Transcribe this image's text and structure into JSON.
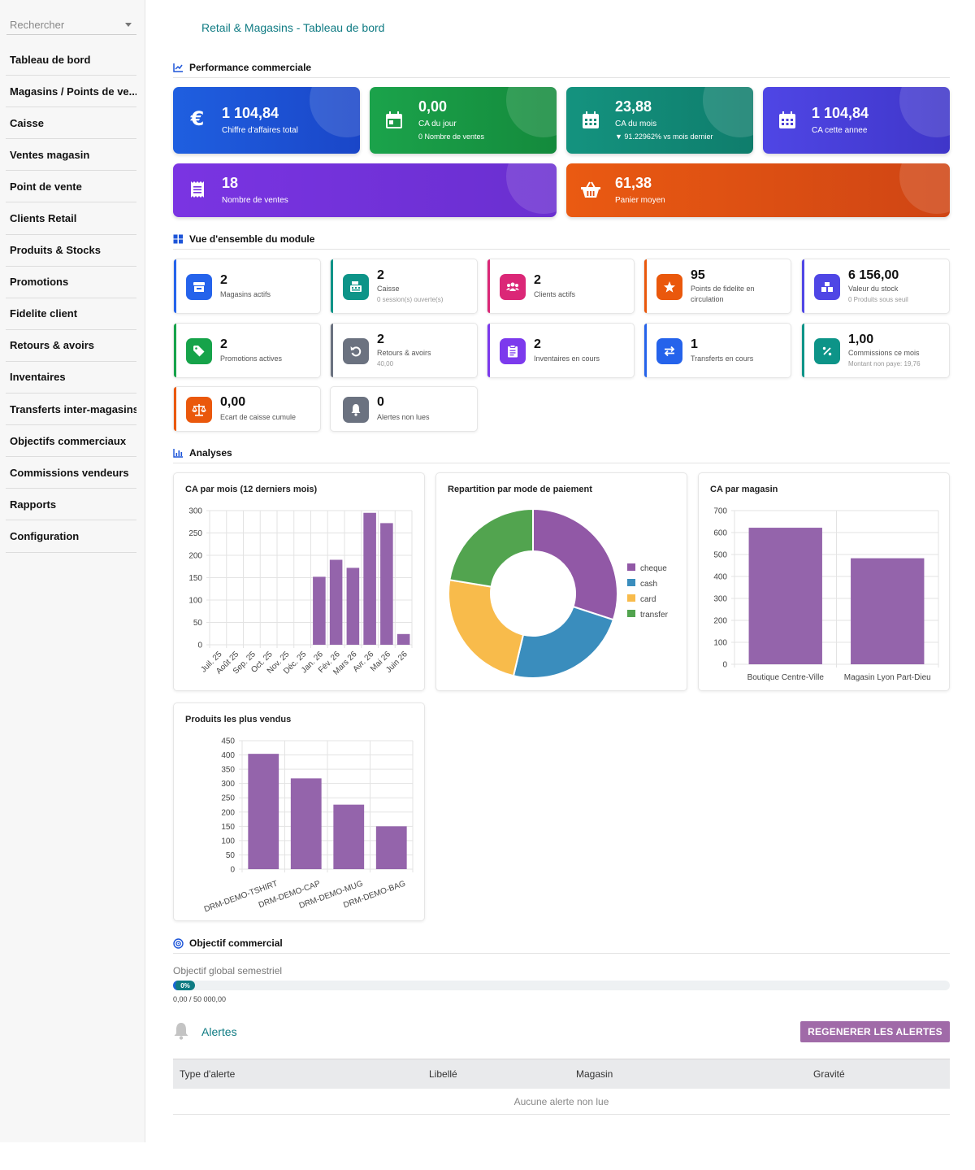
{
  "sidebar": {
    "search_placeholder": "Rechercher",
    "items": [
      {
        "label": "Tableau de bord"
      },
      {
        "label": "Magasins / Points de ve..."
      },
      {
        "label": "Caisse"
      },
      {
        "label": "Ventes magasin"
      },
      {
        "label": "Point de vente"
      },
      {
        "label": "Clients Retail"
      },
      {
        "label": "Produits & Stocks"
      },
      {
        "label": "Promotions"
      },
      {
        "label": "Fidelite client"
      },
      {
        "label": "Retours & avoirs"
      },
      {
        "label": "Inventaires"
      },
      {
        "label": "Transferts inter-magasins"
      },
      {
        "label": "Objectifs commerciaux"
      },
      {
        "label": "Commissions vendeurs"
      },
      {
        "label": "Rapports"
      },
      {
        "label": "Configuration"
      }
    ]
  },
  "header": {
    "title": "Retail & Magasins - Tableau de bord"
  },
  "sections": {
    "performance": "Performance commerciale",
    "overview": "Vue d'ensemble du module",
    "analyses": "Analyses",
    "objective": "Objectif commercial"
  },
  "kpis": [
    {
      "value": "1 104,84",
      "label": "Chiffre d'affaires total",
      "icon": "euro-icon",
      "color": "#1d55d8"
    },
    {
      "value": "0,00",
      "label": "CA du jour",
      "sub": "0 Nombre de ventes",
      "icon": "calendar-day-icon",
      "color": "#1a9a46"
    },
    {
      "value": "23,88",
      "label": "CA du mois",
      "sub": "▼ 91.22962% vs mois dernier",
      "icon": "calendar-month-icon",
      "color": "#138b78"
    },
    {
      "value": "1 104,84",
      "label": "CA cette annee",
      "icon": "calendar-year-icon",
      "color": "#4b3fd6"
    },
    {
      "value": "18",
      "label": "Nombre de ventes",
      "icon": "receipt-icon",
      "color": "#7434dd"
    },
    {
      "value": "61,38",
      "label": "Panier moyen",
      "icon": "basket-icon",
      "color": "#e04f13"
    }
  ],
  "modules": [
    {
      "value": "2",
      "label": "Magasins actifs",
      "icon": "store-icon",
      "color": "#2563eb"
    },
    {
      "value": "2",
      "label": "Caisse",
      "sub": "0 session(s) ouverte(s)",
      "icon": "cash-register-icon",
      "color": "#0d9488"
    },
    {
      "value": "2",
      "label": "Clients actifs",
      "icon": "users-icon",
      "color": "#db2777"
    },
    {
      "value": "95",
      "label": "Points de fidelite en circulation",
      "icon": "star-icon",
      "color": "#ea580c"
    },
    {
      "value": "6 156,00",
      "label": "Valeur du stock",
      "sub": "0 Produits sous seuil",
      "icon": "boxes-icon",
      "color": "#4f46e5"
    },
    {
      "value": "2",
      "label": "Promotions actives",
      "icon": "tags-icon",
      "color": "#16a34a"
    },
    {
      "value": "2",
      "label": "Retours & avoirs",
      "sub": "40,00",
      "icon": "undo-icon",
      "color": "#6b7280"
    },
    {
      "value": "2",
      "label": "Inventaires en cours",
      "icon": "clipboard-icon",
      "color": "#7c3aed"
    },
    {
      "value": "1",
      "label": "Transferts en cours",
      "icon": "transfer-icon",
      "color": "#2563eb"
    },
    {
      "value": "1,00",
      "label": "Commissions ce mois",
      "sub": "Montant non paye: 19,76",
      "icon": "percent-icon",
      "color": "#0d9488"
    },
    {
      "value": "0,00",
      "label": "Ecart de caisse cumule",
      "icon": "scale-icon",
      "color": "#ea580c"
    },
    {
      "value": "0",
      "label": "Alertes non lues",
      "icon": "bell-icon",
      "color": "#6b7280"
    }
  ],
  "chart_data": [
    {
      "type": "bar",
      "title": "CA par mois (12 derniers mois)",
      "categories": [
        "Juil. 25",
        "Août 25",
        "Sep. 25",
        "Oct. 25",
        "Nov. 25",
        "Déc. 25",
        "Jan. 26",
        "Fév. 26",
        "Mars 26",
        "Avr. 26",
        "Mai 26",
        "Juin 26"
      ],
      "values": [
        0,
        0,
        0,
        0,
        0,
        0,
        152,
        190,
        172,
        295,
        272,
        24
      ],
      "ylim": [
        0,
        300
      ],
      "yticks": [
        0,
        50,
        100,
        150,
        200,
        250,
        300
      ],
      "grid": true,
      "color": "#9464ab"
    },
    {
      "type": "pie",
      "title": "Repartition par mode de paiement",
      "categories": [
        "cheque",
        "cash",
        "card",
        "transfer"
      ],
      "values": [
        332,
        262,
        264,
        248
      ],
      "colors": [
        "#9158a6",
        "#3a8dbd",
        "#f8bb4b",
        "#52a44f"
      ],
      "legend": "right"
    },
    {
      "type": "bar",
      "title": "CA par magasin",
      "categories": [
        "Boutique Centre-Ville",
        "Magasin Lyon Part-Dieu"
      ],
      "values": [
        622,
        483
      ],
      "ylim": [
        0,
        700
      ],
      "yticks": [
        0,
        100,
        200,
        300,
        400,
        500,
        600,
        700
      ],
      "grid": true,
      "color": "#9464ab"
    },
    {
      "type": "bar",
      "title": "Produits les plus vendus",
      "categories": [
        "DRM-DEMO-TSHIRT",
        "DRM-DEMO-CAP",
        "DRM-DEMO-MUG",
        "DRM-DEMO-BAG"
      ],
      "values": [
        404,
        318,
        226,
        150
      ],
      "ylim": [
        0,
        450
      ],
      "yticks": [
        0,
        50,
        100,
        150,
        200,
        250,
        300,
        350,
        400,
        450
      ],
      "grid": true,
      "color": "#9464ab"
    }
  ],
  "objective": {
    "label": "Objectif global semestriel",
    "percent_text": "0%",
    "percent": 0,
    "amount": "0,00 / 50 000,00"
  },
  "alerts": {
    "title": "Alertes",
    "button": "REGENERER LES ALERTES",
    "columns": [
      "Type d'alerte",
      "Libellé",
      "Magasin",
      "Gravité"
    ],
    "empty": "Aucune alerte non lue"
  }
}
